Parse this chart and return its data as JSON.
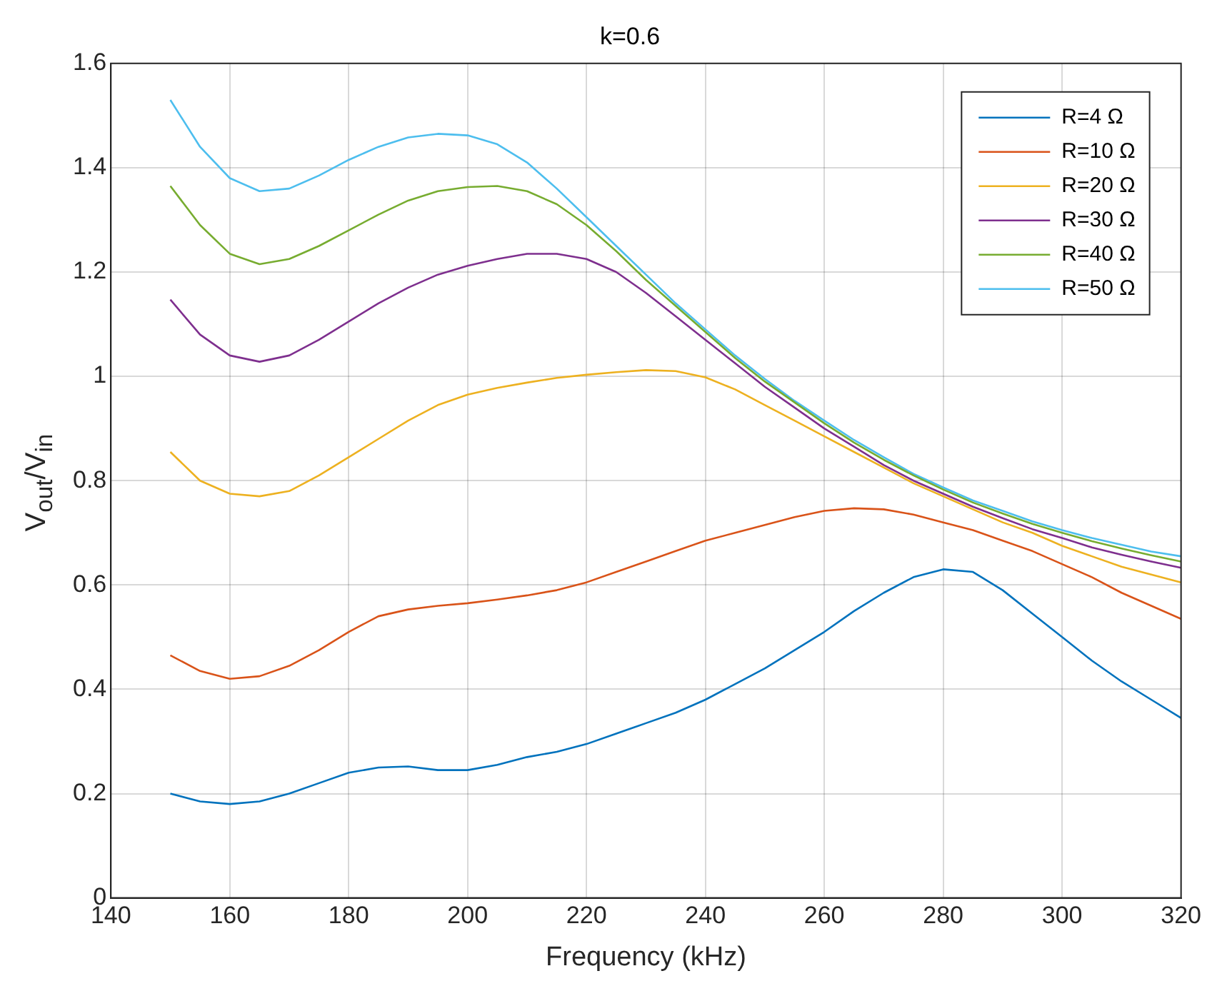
{
  "chart_data": {
    "type": "line",
    "title": "k=0.6",
    "xlabel": "Frequency (kHz)",
    "ylabel": "V$_{out}$/V$_{in}$",
    "x": [
      150,
      155,
      160,
      165,
      170,
      175,
      180,
      185,
      190,
      195,
      200,
      205,
      210,
      215,
      220,
      225,
      230,
      235,
      240,
      245,
      250,
      255,
      260,
      265,
      270,
      275,
      280,
      285,
      290,
      295,
      300,
      305,
      310,
      315,
      320
    ],
    "xlim": [
      140,
      320
    ],
    "xticks": [
      140,
      160,
      180,
      200,
      220,
      240,
      260,
      280,
      300,
      320
    ],
    "ylim": [
      0,
      1.6
    ],
    "yticks": [
      0,
      0.2,
      0.4,
      0.6,
      0.8,
      1,
      1.2,
      1.4,
      1.6
    ],
    "grid": true,
    "legend": "top right",
    "marker": "none",
    "line_style": "solid",
    "series": [
      {
        "name": "R=4 Ω",
        "color": "#0072bd",
        "values": [
          0.2,
          0.185,
          0.18,
          0.185,
          0.2,
          0.22,
          0.24,
          0.25,
          0.252,
          0.245,
          0.245,
          0.255,
          0.27,
          0.28,
          0.295,
          0.315,
          0.335,
          0.355,
          0.38,
          0.41,
          0.44,
          0.475,
          0.51,
          0.55,
          0.585,
          0.615,
          0.63,
          0.625,
          0.59,
          0.545,
          0.5,
          0.455,
          0.415,
          0.38,
          0.345
        ]
      },
      {
        "name": "R=10 Ω",
        "color": "#d95319",
        "values": [
          0.465,
          0.435,
          0.42,
          0.425,
          0.445,
          0.475,
          0.51,
          0.54,
          0.553,
          0.56,
          0.565,
          0.572,
          0.58,
          0.59,
          0.605,
          0.625,
          0.645,
          0.665,
          0.685,
          0.7,
          0.715,
          0.73,
          0.742,
          0.747,
          0.745,
          0.735,
          0.72,
          0.705,
          0.685,
          0.665,
          0.64,
          0.615,
          0.585,
          0.56,
          0.535
        ]
      },
      {
        "name": "R=20 Ω",
        "color": "#edb120",
        "values": [
          0.855,
          0.8,
          0.775,
          0.77,
          0.78,
          0.81,
          0.845,
          0.88,
          0.915,
          0.945,
          0.965,
          0.978,
          0.988,
          0.997,
          1.003,
          1.008,
          1.012,
          1.01,
          0.998,
          0.975,
          0.945,
          0.915,
          0.885,
          0.855,
          0.825,
          0.795,
          0.77,
          0.745,
          0.72,
          0.7,
          0.675,
          0.655,
          0.635,
          0.62,
          0.605
        ]
      },
      {
        "name": "R=30 Ω",
        "color": "#7e2f8e",
        "values": [
          1.147,
          1.08,
          1.04,
          1.028,
          1.04,
          1.07,
          1.105,
          1.14,
          1.17,
          1.195,
          1.212,
          1.225,
          1.235,
          1.235,
          1.225,
          1.2,
          1.16,
          1.115,
          1.07,
          1.025,
          0.98,
          0.94,
          0.9,
          0.865,
          0.83,
          0.8,
          0.775,
          0.75,
          0.728,
          0.707,
          0.69,
          0.672,
          0.658,
          0.645,
          0.633
        ]
      },
      {
        "name": "R=40 Ω",
        "color": "#77ac30",
        "values": [
          1.365,
          1.29,
          1.235,
          1.215,
          1.225,
          1.25,
          1.28,
          1.31,
          1.337,
          1.355,
          1.363,
          1.365,
          1.355,
          1.33,
          1.29,
          1.24,
          1.185,
          1.135,
          1.085,
          1.035,
          0.99,
          0.95,
          0.91,
          0.873,
          0.84,
          0.81,
          0.783,
          0.758,
          0.737,
          0.717,
          0.7,
          0.684,
          0.67,
          0.657,
          0.645
        ]
      },
      {
        "name": "R=50 Ω",
        "color": "#4dbeee",
        "values": [
          1.53,
          1.44,
          1.38,
          1.355,
          1.36,
          1.385,
          1.415,
          1.44,
          1.458,
          1.465,
          1.462,
          1.445,
          1.41,
          1.36,
          1.305,
          1.25,
          1.195,
          1.14,
          1.09,
          1.04,
          0.995,
          0.953,
          0.915,
          0.878,
          0.845,
          0.813,
          0.787,
          0.762,
          0.742,
          0.722,
          0.705,
          0.69,
          0.677,
          0.664,
          0.655
        ]
      }
    ]
  }
}
